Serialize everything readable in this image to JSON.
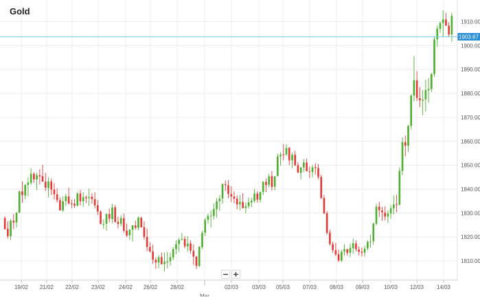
{
  "chart_data": {
    "type": "candlestick",
    "title": "Gold",
    "xlabel": "",
    "ylabel": "",
    "ylim": [
      1804,
      1915
    ],
    "yticks": [
      1810,
      1820,
      1830,
      1840,
      1850,
      1860,
      1870,
      1880,
      1890,
      1900,
      1910
    ],
    "ytick_labels": [
      "1810.00",
      "1820.00",
      "1830.00",
      "1840.00",
      "1850.00",
      "1860.00",
      "1870.00",
      "1880.00",
      "1890.00",
      "1900.00",
      "1910.00"
    ],
    "xtick_labels": [
      "19/02",
      "21/02",
      "22/02",
      "23/02",
      "24/02",
      "26/02",
      "28/02",
      "Mar",
      "02/03",
      "03/03",
      "05/03",
      "07/03",
      "08/03",
      "09/03",
      "10/03",
      "12/03",
      "14/03"
    ],
    "current_price": 1903.67,
    "current_price_label": "1903.67",
    "grid": true,
    "colors": {
      "up": "#4caf2e",
      "down": "#e53935",
      "current_line": "#87cef0",
      "current_badge": "#2a8fd6",
      "grid": "#ececec"
    },
    "ohlc": [
      [
        1827.9,
        1828.6,
        1823.2,
        1823.2
      ],
      [
        1823.4,
        1826.6,
        1819.3,
        1820.4
      ],
      [
        1820.3,
        1827.5,
        1818.7,
        1826.8
      ],
      [
        1826.8,
        1829.6,
        1823.3,
        1826.0
      ],
      [
        1826.1,
        1830.4,
        1823.9,
        1830.1
      ],
      [
        1830.2,
        1839.3,
        1829.9,
        1839.1
      ],
      [
        1839.0,
        1843.2,
        1834.3,
        1837.5
      ],
      [
        1837.3,
        1841.9,
        1835.8,
        1841.8
      ],
      [
        1841.7,
        1844.9,
        1837.0,
        1842.7
      ],
      [
        1842.6,
        1848.7,
        1841.8,
        1846.4
      ],
      [
        1846.4,
        1847.0,
        1842.6,
        1844.0
      ],
      [
        1844.0,
        1846.7,
        1839.6,
        1845.8
      ],
      [
        1845.8,
        1848.3,
        1842.0,
        1845.3
      ],
      [
        1845.4,
        1850.2,
        1843.1,
        1843.1
      ],
      [
        1843.1,
        1846.8,
        1839.3,
        1840.6
      ],
      [
        1840.5,
        1844.9,
        1836.6,
        1843.2
      ],
      [
        1843.2,
        1844.5,
        1837.5,
        1839.8
      ],
      [
        1839.8,
        1842.5,
        1835.6,
        1837.8
      ],
      [
        1837.8,
        1840.3,
        1834.4,
        1835.4
      ],
      [
        1835.4,
        1836.6,
        1831.1,
        1831.1
      ],
      [
        1831.1,
        1837.0,
        1830.5,
        1834.9
      ],
      [
        1835.0,
        1838.0,
        1833.0,
        1837.0
      ],
      [
        1836.9,
        1840.6,
        1833.6,
        1834.0
      ],
      [
        1834.1,
        1835.6,
        1832.0,
        1833.8
      ],
      [
        1833.9,
        1835.9,
        1832.1,
        1833.1
      ],
      [
        1833.1,
        1838.9,
        1832.6,
        1838.1
      ],
      [
        1838.2,
        1839.7,
        1833.1,
        1834.9
      ],
      [
        1834.9,
        1838.8,
        1832.6,
        1836.6
      ],
      [
        1836.6,
        1837.4,
        1834.2,
        1836.2
      ],
      [
        1836.3,
        1840.2,
        1832.9,
        1836.7
      ],
      [
        1836.8,
        1838.3,
        1833.9,
        1835.8
      ],
      [
        1835.8,
        1838.7,
        1831.9,
        1833.2
      ],
      [
        1833.2,
        1835.4,
        1829.2,
        1830.6
      ],
      [
        1830.6,
        1831.1,
        1825.4,
        1825.4
      ],
      [
        1825.4,
        1827.4,
        1823.4,
        1825.4
      ],
      [
        1825.5,
        1829.7,
        1822.7,
        1829.7
      ],
      [
        1829.6,
        1831.9,
        1826.1,
        1827.6
      ],
      [
        1827.5,
        1833.9,
        1825.7,
        1832.3
      ],
      [
        1832.4,
        1833.4,
        1826.1,
        1826.2
      ],
      [
        1826.3,
        1828.4,
        1823.6,
        1825.4
      ],
      [
        1825.5,
        1829.1,
        1824.5,
        1827.9
      ],
      [
        1827.8,
        1829.8,
        1821.8,
        1822.6
      ],
      [
        1822.7,
        1825.6,
        1819.9,
        1820.6
      ],
      [
        1820.7,
        1823.3,
        1818.9,
        1823.0
      ],
      [
        1823.0,
        1824.9,
        1818.1,
        1824.9
      ],
      [
        1824.8,
        1826.8,
        1823.0,
        1823.8
      ],
      [
        1823.8,
        1828.5,
        1822.8,
        1828.1
      ],
      [
        1828.0,
        1828.4,
        1824.0,
        1824.0
      ],
      [
        1824.1,
        1826.5,
        1818.9,
        1820.0
      ],
      [
        1820.0,
        1823.5,
        1814.0,
        1815.8
      ],
      [
        1815.8,
        1817.8,
        1813.5,
        1813.9
      ],
      [
        1813.9,
        1816.8,
        1808.7,
        1810.5
      ],
      [
        1810.5,
        1811.5,
        1806.7,
        1809.3
      ],
      [
        1809.3,
        1812.4,
        1806.9,
        1811.5
      ],
      [
        1811.6,
        1813.5,
        1808.6,
        1808.6
      ],
      [
        1808.7,
        1813.5,
        1805.6,
        1809.6
      ],
      [
        1809.6,
        1813.8,
        1806.9,
        1809.7
      ],
      [
        1809.8,
        1813.4,
        1808.0,
        1811.5
      ],
      [
        1811.4,
        1815.7,
        1810.4,
        1814.9
      ],
      [
        1814.9,
        1818.6,
        1812.8,
        1817.0
      ],
      [
        1817.0,
        1819.6,
        1813.7,
        1818.8
      ],
      [
        1818.9,
        1821.7,
        1818.4,
        1819.2
      ],
      [
        1819.2,
        1820.3,
        1815.3,
        1816.0
      ],
      [
        1816.1,
        1820.3,
        1814.0,
        1817.2
      ],
      [
        1817.3,
        1818.6,
        1813.0,
        1814.3
      ],
      [
        1814.2,
        1816.9,
        1808.3,
        1811.8
      ],
      [
        1811.8,
        1812.0,
        1806.6,
        1807.9
      ],
      [
        1807.9,
        1816.1,
        1807.4,
        1815.9
      ],
      [
        1815.8,
        1822.5,
        1814.9,
        1821.7
      ],
      [
        1821.8,
        1827.8,
        1820.4,
        1827.1
      ],
      [
        1827.2,
        1829.8,
        1825.6,
        1828.8
      ],
      [
        1828.9,
        1831.0,
        1824.0,
        1828.9
      ],
      [
        1828.8,
        1834.0,
        1827.3,
        1831.7
      ],
      [
        1831.6,
        1836.2,
        1828.1,
        1834.9
      ],
      [
        1835.0,
        1837.5,
        1830.9,
        1836.0
      ],
      [
        1836.1,
        1842.4,
        1833.9,
        1842.1
      ],
      [
        1842.1,
        1843.6,
        1839.2,
        1841.7
      ],
      [
        1841.6,
        1843.8,
        1836.2,
        1838.0
      ],
      [
        1837.9,
        1841.2,
        1834.6,
        1836.9
      ],
      [
        1836.9,
        1839.0,
        1834.1,
        1836.0
      ],
      [
        1836.0,
        1837.4,
        1831.6,
        1833.6
      ],
      [
        1833.7,
        1837.6,
        1831.1,
        1834.6
      ],
      [
        1834.6,
        1838.3,
        1831.8,
        1832.1
      ],
      [
        1832.1,
        1834.4,
        1829.9,
        1832.8
      ],
      [
        1832.9,
        1836.6,
        1831.9,
        1834.5
      ],
      [
        1834.4,
        1836.4,
        1832.5,
        1835.1
      ],
      [
        1835.1,
        1840.0,
        1834.2,
        1838.1
      ],
      [
        1838.1,
        1839.1,
        1834.3,
        1835.6
      ],
      [
        1835.5,
        1838.9,
        1834.4,
        1838.8
      ],
      [
        1838.8,
        1843.4,
        1837.5,
        1843.0
      ],
      [
        1843.0,
        1844.4,
        1838.7,
        1841.7
      ],
      [
        1841.8,
        1846.4,
        1840.7,
        1845.3
      ],
      [
        1845.4,
        1847.5,
        1839.4,
        1840.9
      ],
      [
        1841.0,
        1845.6,
        1839.5,
        1845.3
      ],
      [
        1845.4,
        1854.9,
        1845.4,
        1853.7
      ],
      [
        1853.7,
        1855.4,
        1849.8,
        1854.4
      ],
      [
        1854.5,
        1858.8,
        1852.1,
        1854.4
      ],
      [
        1854.5,
        1858.7,
        1853.8,
        1857.2
      ],
      [
        1857.3,
        1857.5,
        1850.0,
        1852.0
      ],
      [
        1852.0,
        1855.3,
        1848.8,
        1854.3
      ],
      [
        1854.4,
        1856.0,
        1849.6,
        1850.0
      ],
      [
        1850.0,
        1851.3,
        1846.7,
        1846.9
      ],
      [
        1846.8,
        1849.2,
        1844.1,
        1849.0
      ],
      [
        1849.1,
        1852.5,
        1847.1,
        1851.1
      ],
      [
        1851.1,
        1852.7,
        1847.4,
        1847.5
      ],
      [
        1847.5,
        1849.4,
        1844.7,
        1847.2
      ],
      [
        1847.1,
        1850.1,
        1845.0,
        1849.1
      ],
      [
        1849.2,
        1850.8,
        1846.1,
        1848.8
      ],
      [
        1848.8,
        1850.5,
        1844.2,
        1845.1
      ],
      [
        1845.1,
        1846.0,
        1835.8,
        1836.3
      ],
      [
        1836.3,
        1837.6,
        1829.5,
        1829.9
      ],
      [
        1829.9,
        1830.8,
        1821.0,
        1821.7
      ],
      [
        1821.8,
        1823.0,
        1816.4,
        1817.0
      ],
      [
        1817.0,
        1818.1,
        1813.4,
        1814.5
      ],
      [
        1814.5,
        1817.5,
        1812.0,
        1812.7
      ],
      [
        1812.8,
        1814.7,
        1809.5,
        1810.1
      ],
      [
        1810.1,
        1814.6,
        1809.5,
        1813.8
      ],
      [
        1813.9,
        1817.0,
        1812.2,
        1814.9
      ],
      [
        1814.9,
        1815.0,
        1812.2,
        1813.3
      ],
      [
        1813.4,
        1817.2,
        1811.6,
        1815.4
      ],
      [
        1815.3,
        1819.3,
        1813.0,
        1817.4
      ],
      [
        1817.3,
        1818.6,
        1813.9,
        1814.9
      ],
      [
        1814.8,
        1816.1,
        1812.3,
        1813.8
      ],
      [
        1813.8,
        1815.5,
        1811.9,
        1813.4
      ],
      [
        1813.4,
        1816.3,
        1811.8,
        1815.1
      ],
      [
        1815.2,
        1818.6,
        1814.4,
        1817.9
      ],
      [
        1817.8,
        1820.9,
        1815.5,
        1818.1
      ],
      [
        1818.2,
        1826.0,
        1816.7,
        1825.6
      ],
      [
        1825.5,
        1833.8,
        1824.8,
        1832.6
      ],
      [
        1832.7,
        1834.7,
        1828.3,
        1831.2
      ],
      [
        1831.1,
        1832.6,
        1826.7,
        1830.3
      ],
      [
        1830.2,
        1832.8,
        1826.9,
        1828.5
      ],
      [
        1828.5,
        1831.1,
        1825.9,
        1829.8
      ],
      [
        1829.8,
        1833.3,
        1827.7,
        1832.0
      ],
      [
        1832.0,
        1837.3,
        1829.4,
        1833.6
      ],
      [
        1833.7,
        1837.7,
        1830.3,
        1833.5
      ],
      [
        1833.5,
        1849.1,
        1833.1,
        1847.6
      ],
      [
        1847.6,
        1861.6,
        1845.9,
        1859.6
      ],
      [
        1859.6,
        1862.4,
        1853.7,
        1858.1
      ],
      [
        1858.1,
        1866.8,
        1855.6,
        1866.4
      ],
      [
        1866.4,
        1879.7,
        1865.0,
        1879.1
      ],
      [
        1879.1,
        1895.6,
        1876.6,
        1885.5
      ],
      [
        1885.4,
        1889.3,
        1876.8,
        1878.1
      ],
      [
        1878.0,
        1882.6,
        1874.2,
        1877.1
      ],
      [
        1877.0,
        1881.4,
        1870.9,
        1877.4
      ],
      [
        1877.5,
        1885.7,
        1872.4,
        1881.4
      ],
      [
        1881.3,
        1886.4,
        1876.1,
        1881.9
      ],
      [
        1881.8,
        1888.6,
        1880.6,
        1888.1
      ],
      [
        1888.1,
        1903.9,
        1886.9,
        1902.6
      ],
      [
        1902.6,
        1908.4,
        1899.4,
        1907.1
      ],
      [
        1907.0,
        1910.1,
        1905.3,
        1909.4
      ],
      [
        1909.4,
        1914.7,
        1903.5,
        1910.9
      ],
      [
        1910.9,
        1913.6,
        1908.2,
        1908.3
      ],
      [
        1908.3,
        1909.7,
        1903.7,
        1904.6
      ],
      [
        1904.6,
        1913.7,
        1901.6,
        1912.4
      ]
    ]
  },
  "zoom": {
    "minus": "−",
    "plus": "+"
  }
}
